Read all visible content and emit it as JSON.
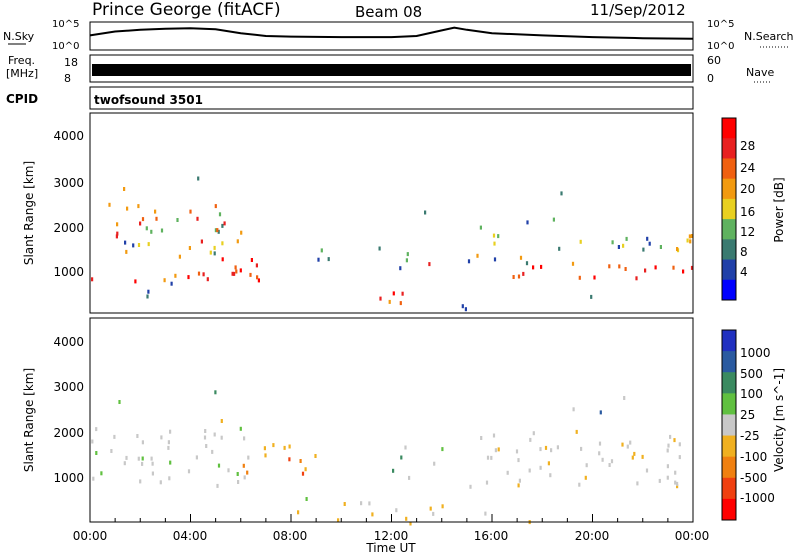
{
  "header": {
    "title": "Prince George (fitACF)",
    "beam": "Beam 08",
    "date": "11/Sep/2012"
  },
  "strip": {
    "left_labels": [
      "N.Sky",
      "Freq.",
      "[MHz]",
      "CPID"
    ],
    "right_labels": [
      "N.Search",
      "Nave"
    ],
    "ticks_noise_left": [
      "10^5",
      "10^0"
    ],
    "ticks_noise_right": [
      "10^5",
      "10^0"
    ],
    "ticks_freq_left": [
      "18",
      "8"
    ],
    "ticks_nave_right": [
      "60",
      "0"
    ],
    "cpid_text": "twofsound 3501"
  },
  "colors": {
    "power_scale": [
      "#0000ff",
      "#2040a8",
      "#3a7a70",
      "#5fb25f",
      "#e8d020",
      "#f29a10",
      "#f06010",
      "#e82020",
      "#ff0000"
    ],
    "velocity_scale": [
      "#2030c0",
      "#2a5aa0",
      "#3a8a60",
      "#60c040",
      "#c8c8c8",
      "#f0b020",
      "#f08010",
      "#f04010",
      "#ff0000"
    ]
  },
  "chart_data": [
    {
      "type": "line",
      "title": "N.Sky / N.Search",
      "x_range": [
        "00:00",
        "24:00"
      ],
      "ylim_log": [
        0,
        5
      ],
      "series": [
        {
          "name": "N.Sky",
          "x": [
            0,
            1,
            2,
            3,
            4,
            5,
            6,
            7,
            8,
            10,
            12,
            13,
            14,
            14.5,
            15,
            16,
            18,
            20,
            22,
            24
          ],
          "values": [
            2.6,
            3.3,
            3.6,
            3.8,
            3.9,
            3.7,
            3.0,
            2.5,
            2.4,
            2.3,
            2.3,
            2.5,
            3.5,
            4.0,
            3.6,
            3.0,
            2.6,
            2.3,
            2.1,
            2.0
          ]
        }
      ]
    },
    {
      "type": "bar",
      "title": "Freq / Nave",
      "x_range": [
        "00:00",
        "24:00"
      ],
      "ylim_freq": [
        8,
        18
      ],
      "ylim_nave": [
        0,
        60
      ],
      "values_description": "constant alternating sounding"
    },
    {
      "type": "heatmap",
      "title": "Power",
      "ylabel": "Slant Range [km]",
      "colorbar_label": "Power [dB]",
      "colorbar_ticks": [
        "4",
        "8",
        "12",
        "16",
        "20",
        "24",
        "28"
      ],
      "yticks": [
        "1000",
        "2000",
        "3000",
        "4000"
      ],
      "ylim": [
        200,
        4600
      ],
      "xlim": [
        0,
        24
      ]
    },
    {
      "type": "heatmap",
      "title": "Velocity",
      "ylabel": "Slant Range [km]",
      "colorbar_label": "Velocity [m s^-1]",
      "colorbar_ticks": [
        "1000",
        "500",
        "100",
        "25",
        "-25",
        "-100",
        "-500",
        "-1000"
      ],
      "yticks": [
        "1000",
        "2000",
        "3000",
        "4000"
      ],
      "xlabel": "Time UT",
      "xticks": [
        "00:00",
        "04:00",
        "08:00",
        "12:00",
        "16:00",
        "20:00",
        "00:00"
      ],
      "ylim": [
        200,
        4600
      ],
      "xlim": [
        0,
        24
      ]
    }
  ]
}
